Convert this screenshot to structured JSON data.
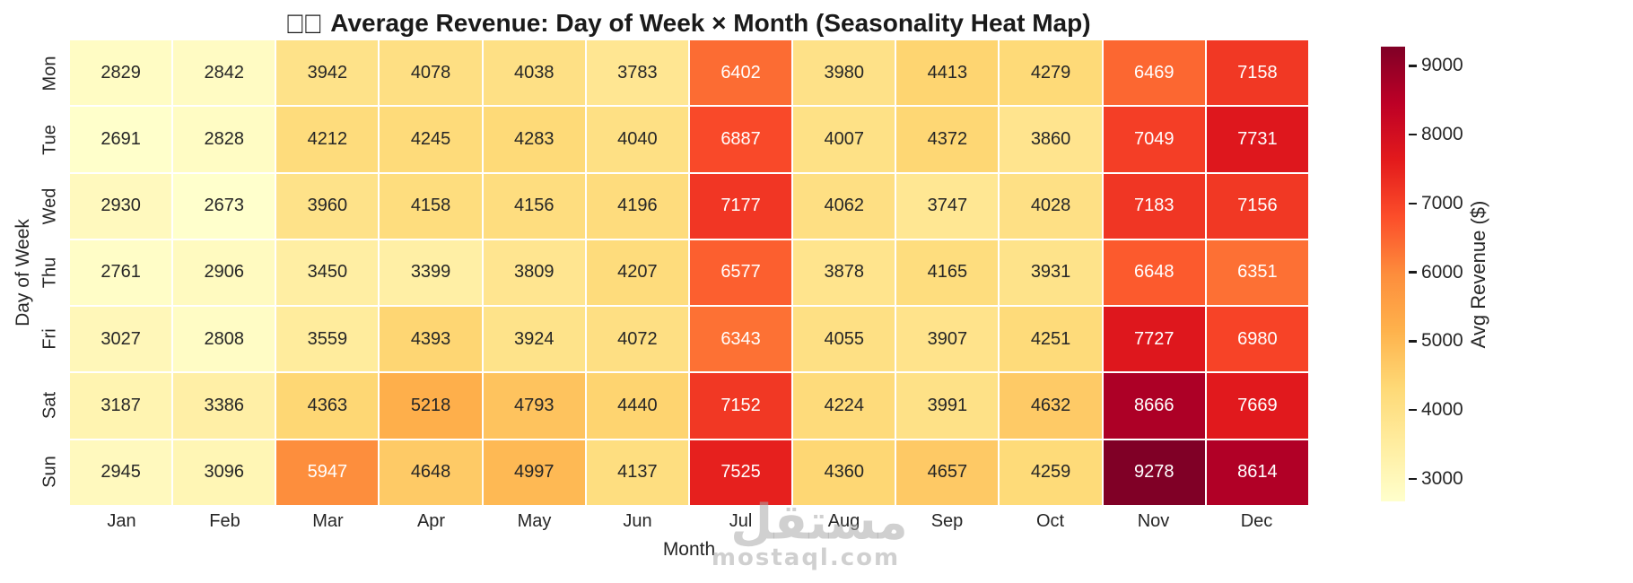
{
  "title": {
    "boxes": "□□",
    "text": "Average Revenue: Day of Week × Month (Seasonality Heat Map)"
  },
  "chart_data": {
    "type": "heatmap",
    "title": "□□ Average Revenue: Day of Week × Month (Seasonality Heat Map)",
    "xlabel": "Month",
    "ylabel": "Day of Week",
    "columns": [
      "Jan",
      "Feb",
      "Mar",
      "Apr",
      "May",
      "Jun",
      "Jul",
      "Aug",
      "Sep",
      "Oct",
      "Nov",
      "Dec"
    ],
    "rows": [
      "Mon",
      "Tue",
      "Wed",
      "Thu",
      "Fri",
      "Sat",
      "Sun"
    ],
    "values": [
      [
        2829,
        2842,
        3942,
        4078,
        4038,
        3783,
        6402,
        3980,
        4413,
        4279,
        6469,
        7158
      ],
      [
        2691,
        2828,
        4212,
        4245,
        4283,
        4040,
        6887,
        4007,
        4372,
        3860,
        7049,
        7731
      ],
      [
        2930,
        2673,
        3960,
        4158,
        4156,
        4196,
        7177,
        4062,
        3747,
        4028,
        7183,
        7156
      ],
      [
        2761,
        2906,
        3450,
        3399,
        3809,
        4207,
        6577,
        3878,
        4165,
        3931,
        6648,
        6351
      ],
      [
        3027,
        2808,
        3559,
        4393,
        3924,
        4072,
        6343,
        4055,
        3907,
        4251,
        7727,
        6980
      ],
      [
        3187,
        3386,
        4363,
        5218,
        4793,
        4440,
        7152,
        4224,
        3991,
        4632,
        8666,
        7669
      ],
      [
        2945,
        3096,
        5947,
        4648,
        4997,
        4137,
        7525,
        4360,
        4657,
        4259,
        9278,
        8614
      ]
    ],
    "annotated": true,
    "gridline_color": "#ffffff",
    "colorbar": {
      "label": "Avg Revenue ($)",
      "position": "right",
      "ticks": [
        3000,
        4000,
        5000,
        6000,
        7000,
        8000,
        9000
      ],
      "vmin": 2673,
      "vmax": 9278,
      "colormap_name": "YlOrRd",
      "colormap_stops": [
        "#ffffcc",
        "#ffeda0",
        "#fed976",
        "#feb24c",
        "#fd8d3c",
        "#fc4e2a",
        "#e31a1c",
        "#bd0026",
        "#800026"
      ]
    },
    "text_colors": {
      "dark": "#262626",
      "light": "#ffffff"
    }
  },
  "watermark": {
    "arabic": "مستقل",
    "latin": "mostaql.com"
  }
}
